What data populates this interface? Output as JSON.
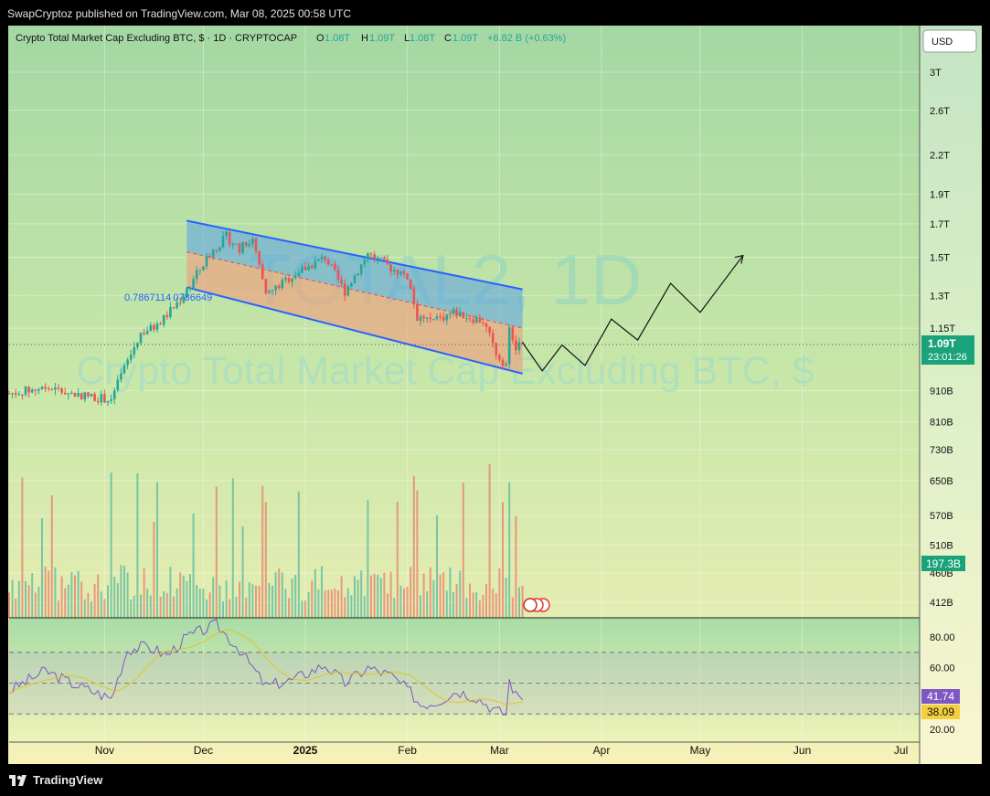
{
  "header": {
    "published": "SwapCryptoz published on TradingView.com, Mar 08, 2025 00:58 UTC"
  },
  "footer": {
    "brand": "TradingView"
  },
  "symbol": {
    "name": "Crypto Total Market Cap Excluding BTC, $ · 1D · CRYPTOCAP",
    "o_label": "O",
    "o": "1.08T",
    "h_label": "H",
    "h": "1.09T",
    "l_label": "L",
    "l": "1.08T",
    "c_label": "C",
    "c": "1.09T",
    "change": "+6.82 B (+0.63%)"
  },
  "currency": "USD",
  "watermark": {
    "line1": "TOTAL2, 1D",
    "line2": "Crypto Total Market Cap Excluding BTC, $"
  },
  "fib_label": "0.7867114 0786649",
  "price_badge": {
    "value": "1.09T",
    "countdown": "23:01:26"
  },
  "volume_badge": "197.3B",
  "rsi_badges": [
    "41.74",
    "38.09"
  ],
  "colors": {
    "up": "#26a69a",
    "down": "#ef5350",
    "channel": "#2962ff",
    "rsi": "#7e57c2",
    "rsi_ma": "#e6c229"
  },
  "chart_data": {
    "type": "candlestick",
    "title": "Crypto Total Market Cap Excluding BTC, $",
    "scale": "log",
    "price_axis": {
      "ticks": [
        "3T",
        "2.6T",
        "2.2T",
        "1.9T",
        "1.7T",
        "1.5T",
        "1.3T",
        "1.15T",
        "910B",
        "810B",
        "730B",
        "650B",
        "570B",
        "510B",
        "460B",
        "412B"
      ],
      "values": [
        3.0,
        2.6,
        2.2,
        1.9,
        1.7,
        1.5,
        1.3,
        1.15,
        0.91,
        0.81,
        0.73,
        0.65,
        0.57,
        0.51,
        0.46,
        0.412
      ]
    },
    "time_axis": {
      "labels": [
        "Nov",
        "Dec",
        "2025",
        "Feb",
        "Mar",
        "Apr",
        "May",
        "Jun",
        "Jul"
      ],
      "dates": [
        "2024-11-01",
        "2024-12-01",
        "2025-01-01",
        "2025-02-01",
        "2025-03-01",
        "2025-04-01",
        "2025-05-01",
        "2025-06-01",
        "2025-07-01"
      ]
    },
    "date_range": [
      "2024-10-03",
      "2025-03-08"
    ],
    "close_keypoints": [
      [
        "2024-10-03",
        0.9
      ],
      [
        "2024-10-14",
        0.92
      ],
      [
        "2024-10-22",
        0.9
      ],
      [
        "2024-11-03",
        0.88
      ],
      [
        "2024-11-07",
        0.99
      ],
      [
        "2024-11-12",
        1.13
      ],
      [
        "2024-11-17",
        1.16
      ],
      [
        "2024-11-24",
        1.28
      ],
      [
        "2024-12-03",
        1.52
      ],
      [
        "2024-12-08",
        1.62
      ],
      [
        "2024-12-12",
        1.55
      ],
      [
        "2024-12-16",
        1.6
      ],
      [
        "2024-12-20",
        1.3
      ],
      [
        "2024-12-28",
        1.4
      ],
      [
        "2025-01-07",
        1.5
      ],
      [
        "2025-01-13",
        1.32
      ],
      [
        "2025-01-20",
        1.52
      ],
      [
        "2025-01-27",
        1.44
      ],
      [
        "2025-02-01",
        1.4
      ],
      [
        "2025-02-04",
        1.2
      ],
      [
        "2025-02-09",
        1.18
      ],
      [
        "2025-02-15",
        1.22
      ],
      [
        "2025-02-24",
        1.18
      ],
      [
        "2025-02-28",
        1.05
      ],
      [
        "2025-03-03",
        1.0
      ],
      [
        "2025-03-04",
        1.17
      ],
      [
        "2025-03-06",
        1.06
      ],
      [
        "2025-03-08",
        1.09
      ]
    ],
    "channel": {
      "upper": [
        [
          "2024-11-26",
          1.72
        ],
        [
          "2025-03-08",
          1.33
        ]
      ],
      "lower": [
        [
          "2024-11-26",
          1.34
        ],
        [
          "2025-03-08",
          0.97
        ]
      ],
      "mid": [
        [
          "2024-11-26",
          1.53
        ],
        [
          "2025-03-08",
          1.15
        ]
      ]
    },
    "projection": [
      [
        "2025-03-08",
        1.09
      ],
      [
        "2025-03-14",
        0.98
      ],
      [
        "2025-03-20",
        1.08
      ],
      [
        "2025-03-27",
        1.0
      ],
      [
        "2025-04-04",
        1.19
      ],
      [
        "2025-04-12",
        1.1
      ],
      [
        "2025-04-22",
        1.36
      ],
      [
        "2025-05-01",
        1.22
      ],
      [
        "2025-05-14",
        1.51
      ]
    ],
    "volume_axis": {
      "max_label": "197.3B"
    },
    "rsi": {
      "axis_ticks": [
        "80.00",
        "60.00",
        "20.00"
      ],
      "levels": [
        70,
        50,
        30
      ],
      "last": 41.74,
      "ma_last": 38.09,
      "keypoints": [
        [
          "2024-10-03",
          45
        ],
        [
          "2024-10-14",
          58
        ],
        [
          "2024-10-22",
          50
        ],
        [
          "2024-11-03",
          40
        ],
        [
          "2024-11-08",
          72
        ],
        [
          "2024-11-14",
          74
        ],
        [
          "2024-11-20",
          68
        ],
        [
          "2024-11-26",
          80
        ],
        [
          "2024-12-05",
          88
        ],
        [
          "2024-12-12",
          72
        ],
        [
          "2024-12-20",
          48
        ],
        [
          "2024-12-28",
          52
        ],
        [
          "2025-01-07",
          62
        ],
        [
          "2025-01-13",
          50
        ],
        [
          "2025-01-20",
          60
        ],
        [
          "2025-01-27",
          55
        ],
        [
          "2025-02-02",
          44
        ],
        [
          "2025-02-05",
          36
        ],
        [
          "2025-02-10",
          38
        ],
        [
          "2025-02-16",
          45
        ],
        [
          "2025-02-22",
          41
        ],
        [
          "2025-02-28",
          32
        ],
        [
          "2025-03-03",
          30
        ],
        [
          "2025-03-04",
          52
        ],
        [
          "2025-03-06",
          42
        ],
        [
          "2025-03-08",
          41.7
        ]
      ]
    }
  }
}
